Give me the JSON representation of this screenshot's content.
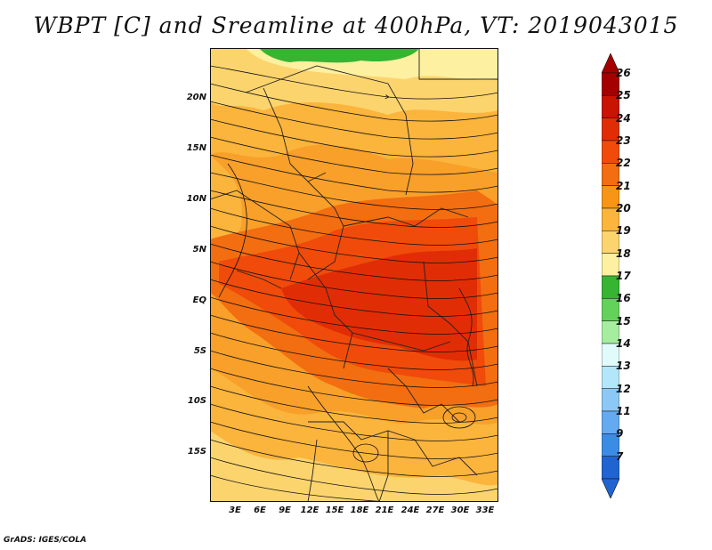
{
  "title": "WBPT [C] and Sreamline at 400hPa, VT: 2019043015",
  "credit": "GrADS: IGES/COLA",
  "map": {
    "lat_labels": [
      "20N",
      "15N",
      "10N",
      "5N",
      "EQ",
      "5S",
      "10S",
      "15S"
    ],
    "lon_labels": [
      "3E",
      "6E",
      "9E",
      "12E",
      "15E",
      "18E",
      "21E",
      "24E",
      "27E",
      "30E",
      "33E"
    ]
  },
  "colorbar": {
    "levels": [
      "26",
      "25",
      "24",
      "23",
      "22",
      "21",
      "20",
      "19",
      "18",
      "17",
      "16",
      "15",
      "14",
      "13",
      "12",
      "11",
      "9",
      "7"
    ],
    "colors": [
      "#a50000",
      "#c81400",
      "#e12d05",
      "#f04b0a",
      "#f26e10",
      "#f89514",
      "#fbb43c",
      "#fcd46e",
      "#fdf0a0",
      "#37b432",
      "#64d25a",
      "#a6eda0",
      "#e1fafa",
      "#b4e6fa",
      "#8cc8f5",
      "#64aaf0",
      "#3c8ce6",
      "#2064d2"
    ],
    "low_arrow_color": "#2064d2",
    "high_arrow_color": "#a50000"
  }
}
